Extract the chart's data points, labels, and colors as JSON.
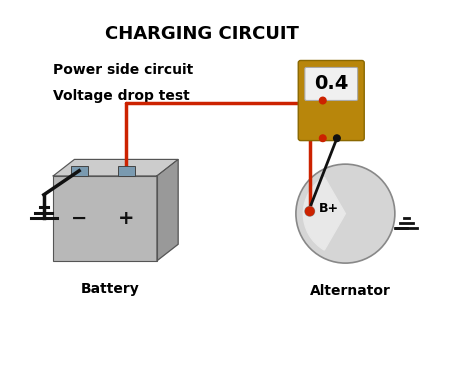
{
  "title": "CHARGING CIRCUIT",
  "subtitle_line1": "Power side circuit",
  "subtitle_line2": "Voltage drop test",
  "meter_value": "0.4",
  "label_battery": "Battery",
  "label_alternator": "Alternator",
  "label_bplus": "B+",
  "bg_color": "#ffffff",
  "title_color": "#000000",
  "subtitle_color": "#000000",
  "wire_red_color": "#cc2200",
  "wire_black_color": "#111111",
  "battery_color_top": "#aaaaaa",
  "battery_color_face": "#bbbbbb",
  "meter_body_color": "#b8860b",
  "meter_screen_color": "#f0f0f0",
  "alternator_color": "#cccccc",
  "ground_color": "#111111"
}
